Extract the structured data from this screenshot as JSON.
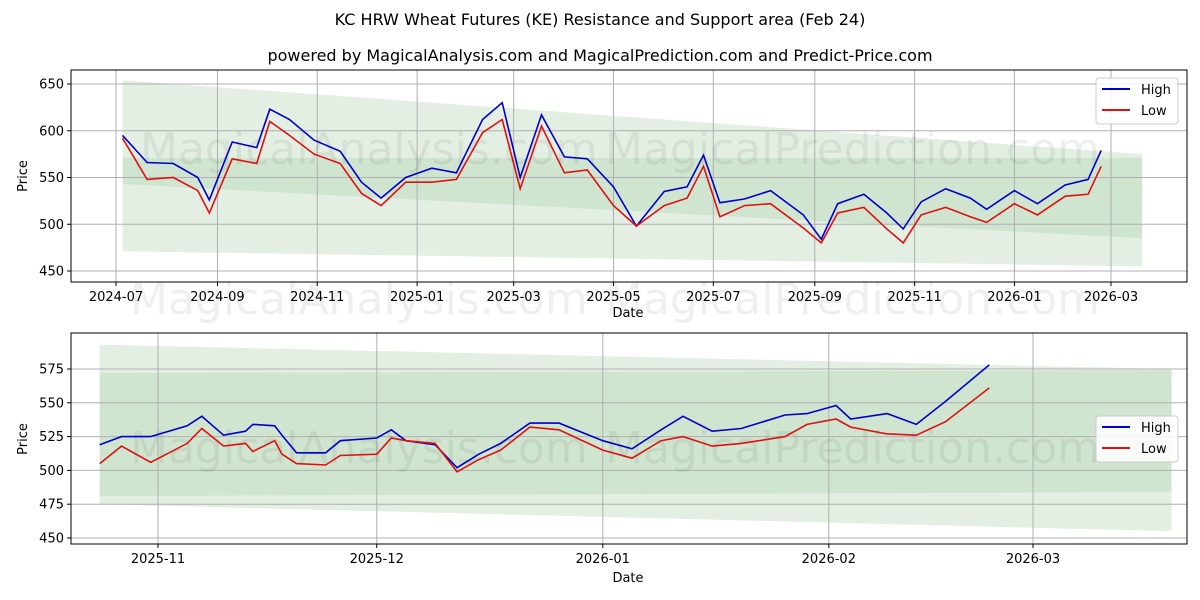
{
  "header": {
    "title": "KC HRW Wheat Futures (KE) Resistance and Support area (Feb 24)",
    "subtitle": "powered by MagicalAnalysis.com and MagicalPrediction.com and Predict-Price.com"
  },
  "watermarks": [
    "MagicalAnalysis.com",
    "MagicalPrediction.com"
  ],
  "colors": {
    "high": "#0000cc",
    "low": "#dd1111",
    "band_outer": "#e3efe3",
    "band_inner": "#cfe5cf",
    "grid": "#b0b0b0"
  },
  "legend": {
    "high_label": "High",
    "low_label": "Low"
  },
  "chart_data": [
    {
      "type": "line",
      "title": "Top panel: full history",
      "xlabel": "Date",
      "ylabel": "Price",
      "ylim": [
        440,
        663
      ],
      "yticks": [
        450,
        500,
        550,
        600,
        650
      ],
      "xticks": [
        "2024-07",
        "2024-09",
        "2024-11",
        "2025-01",
        "2025-03",
        "2025-05",
        "2025-07",
        "2025-09",
        "2025-11",
        "2026-01",
        "2026-03"
      ],
      "grid": true,
      "legend_position": "upper right",
      "bands": {
        "outer": {
          "start": "2024-07-05",
          "end": "2026-03-20",
          "upper": [
            654,
            575
          ],
          "lower": [
            471,
            455
          ]
        },
        "inner": {
          "start": "2024-07-05",
          "end": "2026-03-20",
          "upper": [
            571,
            571
          ],
          "lower": [
            543,
            485
          ]
        }
      },
      "x": [
        "2024-07-05",
        "2024-07-20",
        "2024-08-05",
        "2024-08-20",
        "2024-08-27",
        "2024-09-10",
        "2024-09-25",
        "2024-10-03",
        "2024-10-15",
        "2024-10-30",
        "2024-11-15",
        "2024-11-28",
        "2024-12-10",
        "2024-12-25",
        "2025-01-10",
        "2025-01-25",
        "2025-02-10",
        "2025-02-22",
        "2025-03-05",
        "2025-03-18",
        "2025-04-01",
        "2025-04-15",
        "2025-05-01",
        "2025-05-15",
        "2025-06-01",
        "2025-06-15",
        "2025-06-25",
        "2025-07-05",
        "2025-07-20",
        "2025-08-05",
        "2025-08-25",
        "2025-09-05",
        "2025-09-15",
        "2025-10-01",
        "2025-10-15",
        "2025-10-25",
        "2025-11-05",
        "2025-11-20",
        "2025-12-05",
        "2025-12-15",
        "2026-01-01",
        "2026-01-15",
        "2026-02-01",
        "2026-02-15",
        "2026-02-23"
      ],
      "series": [
        {
          "name": "High",
          "values": [
            595,
            566,
            565,
            550,
            526,
            588,
            582,
            623,
            612,
            590,
            578,
            545,
            528,
            550,
            560,
            555,
            612,
            630,
            550,
            617,
            572,
            570,
            540,
            498,
            535,
            540,
            574,
            523,
            527,
            536,
            510,
            484,
            522,
            532,
            512,
            495,
            524,
            538,
            528,
            516,
            536,
            522,
            542,
            548,
            579
          ]
        },
        {
          "name": "Low",
          "values": [
            592,
            548,
            550,
            536,
            512,
            570,
            565,
            610,
            595,
            575,
            565,
            533,
            520,
            545,
            545,
            548,
            598,
            612,
            538,
            605,
            555,
            558,
            520,
            498,
            520,
            528,
            562,
            508,
            520,
            522,
            496,
            480,
            512,
            518,
            495,
            480,
            510,
            518,
            508,
            502,
            522,
            510,
            530,
            532,
            562
          ]
        }
      ]
    },
    {
      "type": "line",
      "title": "Bottom panel: recent zoom",
      "xlabel": "Date",
      "ylabel": "Price",
      "ylim": [
        447,
        597
      ],
      "yticks": [
        450,
        475,
        500,
        525,
        550,
        575
      ],
      "xticks": [
        "2025-11",
        "2025-12",
        "2026-01",
        "2026-02",
        "2026-03"
      ],
      "grid": true,
      "legend_position": "center right",
      "bands": {
        "outer": {
          "start": "2025-10-24",
          "end": "2026-03-20",
          "upper": [
            593,
            575
          ],
          "lower": [
            475,
            455
          ]
        },
        "inner": {
          "start": "2025-10-24",
          "end": "2026-03-20",
          "upper": [
            572,
            574
          ],
          "lower": [
            481,
            484
          ]
        }
      },
      "x": [
        "2025-10-24",
        "2025-10-27",
        "2025-10-31",
        "2025-11-05",
        "2025-11-07",
        "2025-11-10",
        "2025-11-13",
        "2025-11-14",
        "2025-11-17",
        "2025-11-18",
        "2025-11-20",
        "2025-11-24",
        "2025-11-26",
        "2025-12-01",
        "2025-12-03",
        "2025-12-05",
        "2025-12-09",
        "2025-12-12",
        "2025-12-15",
        "2025-12-18",
        "2025-12-22",
        "2025-12-26",
        "2026-01-01",
        "2026-01-05",
        "2026-01-09",
        "2026-01-12",
        "2026-01-16",
        "2026-01-20",
        "2026-01-26",
        "2026-01-29",
        "2026-02-02",
        "2026-02-04",
        "2026-02-09",
        "2026-02-13",
        "2026-02-17",
        "2026-02-23"
      ],
      "series": [
        {
          "name": "High",
          "values": [
            519,
            525,
            525,
            533,
            540,
            526,
            529,
            534,
            533,
            526,
            513,
            513,
            522,
            524,
            530,
            522,
            519,
            502,
            512,
            520,
            535,
            535,
            522,
            516,
            530,
            540,
            529,
            531,
            541,
            542,
            548,
            538,
            542,
            534,
            551,
            578
          ]
        },
        {
          "name": "Low",
          "values": [
            505,
            518,
            506,
            520,
            531,
            518,
            520,
            514,
            522,
            512,
            505,
            504,
            511,
            512,
            524,
            522,
            520,
            499,
            508,
            515,
            532,
            530,
            515,
            509,
            522,
            525,
            518,
            520,
            525,
            534,
            538,
            532,
            527,
            526,
            536,
            561
          ]
        }
      ]
    }
  ]
}
